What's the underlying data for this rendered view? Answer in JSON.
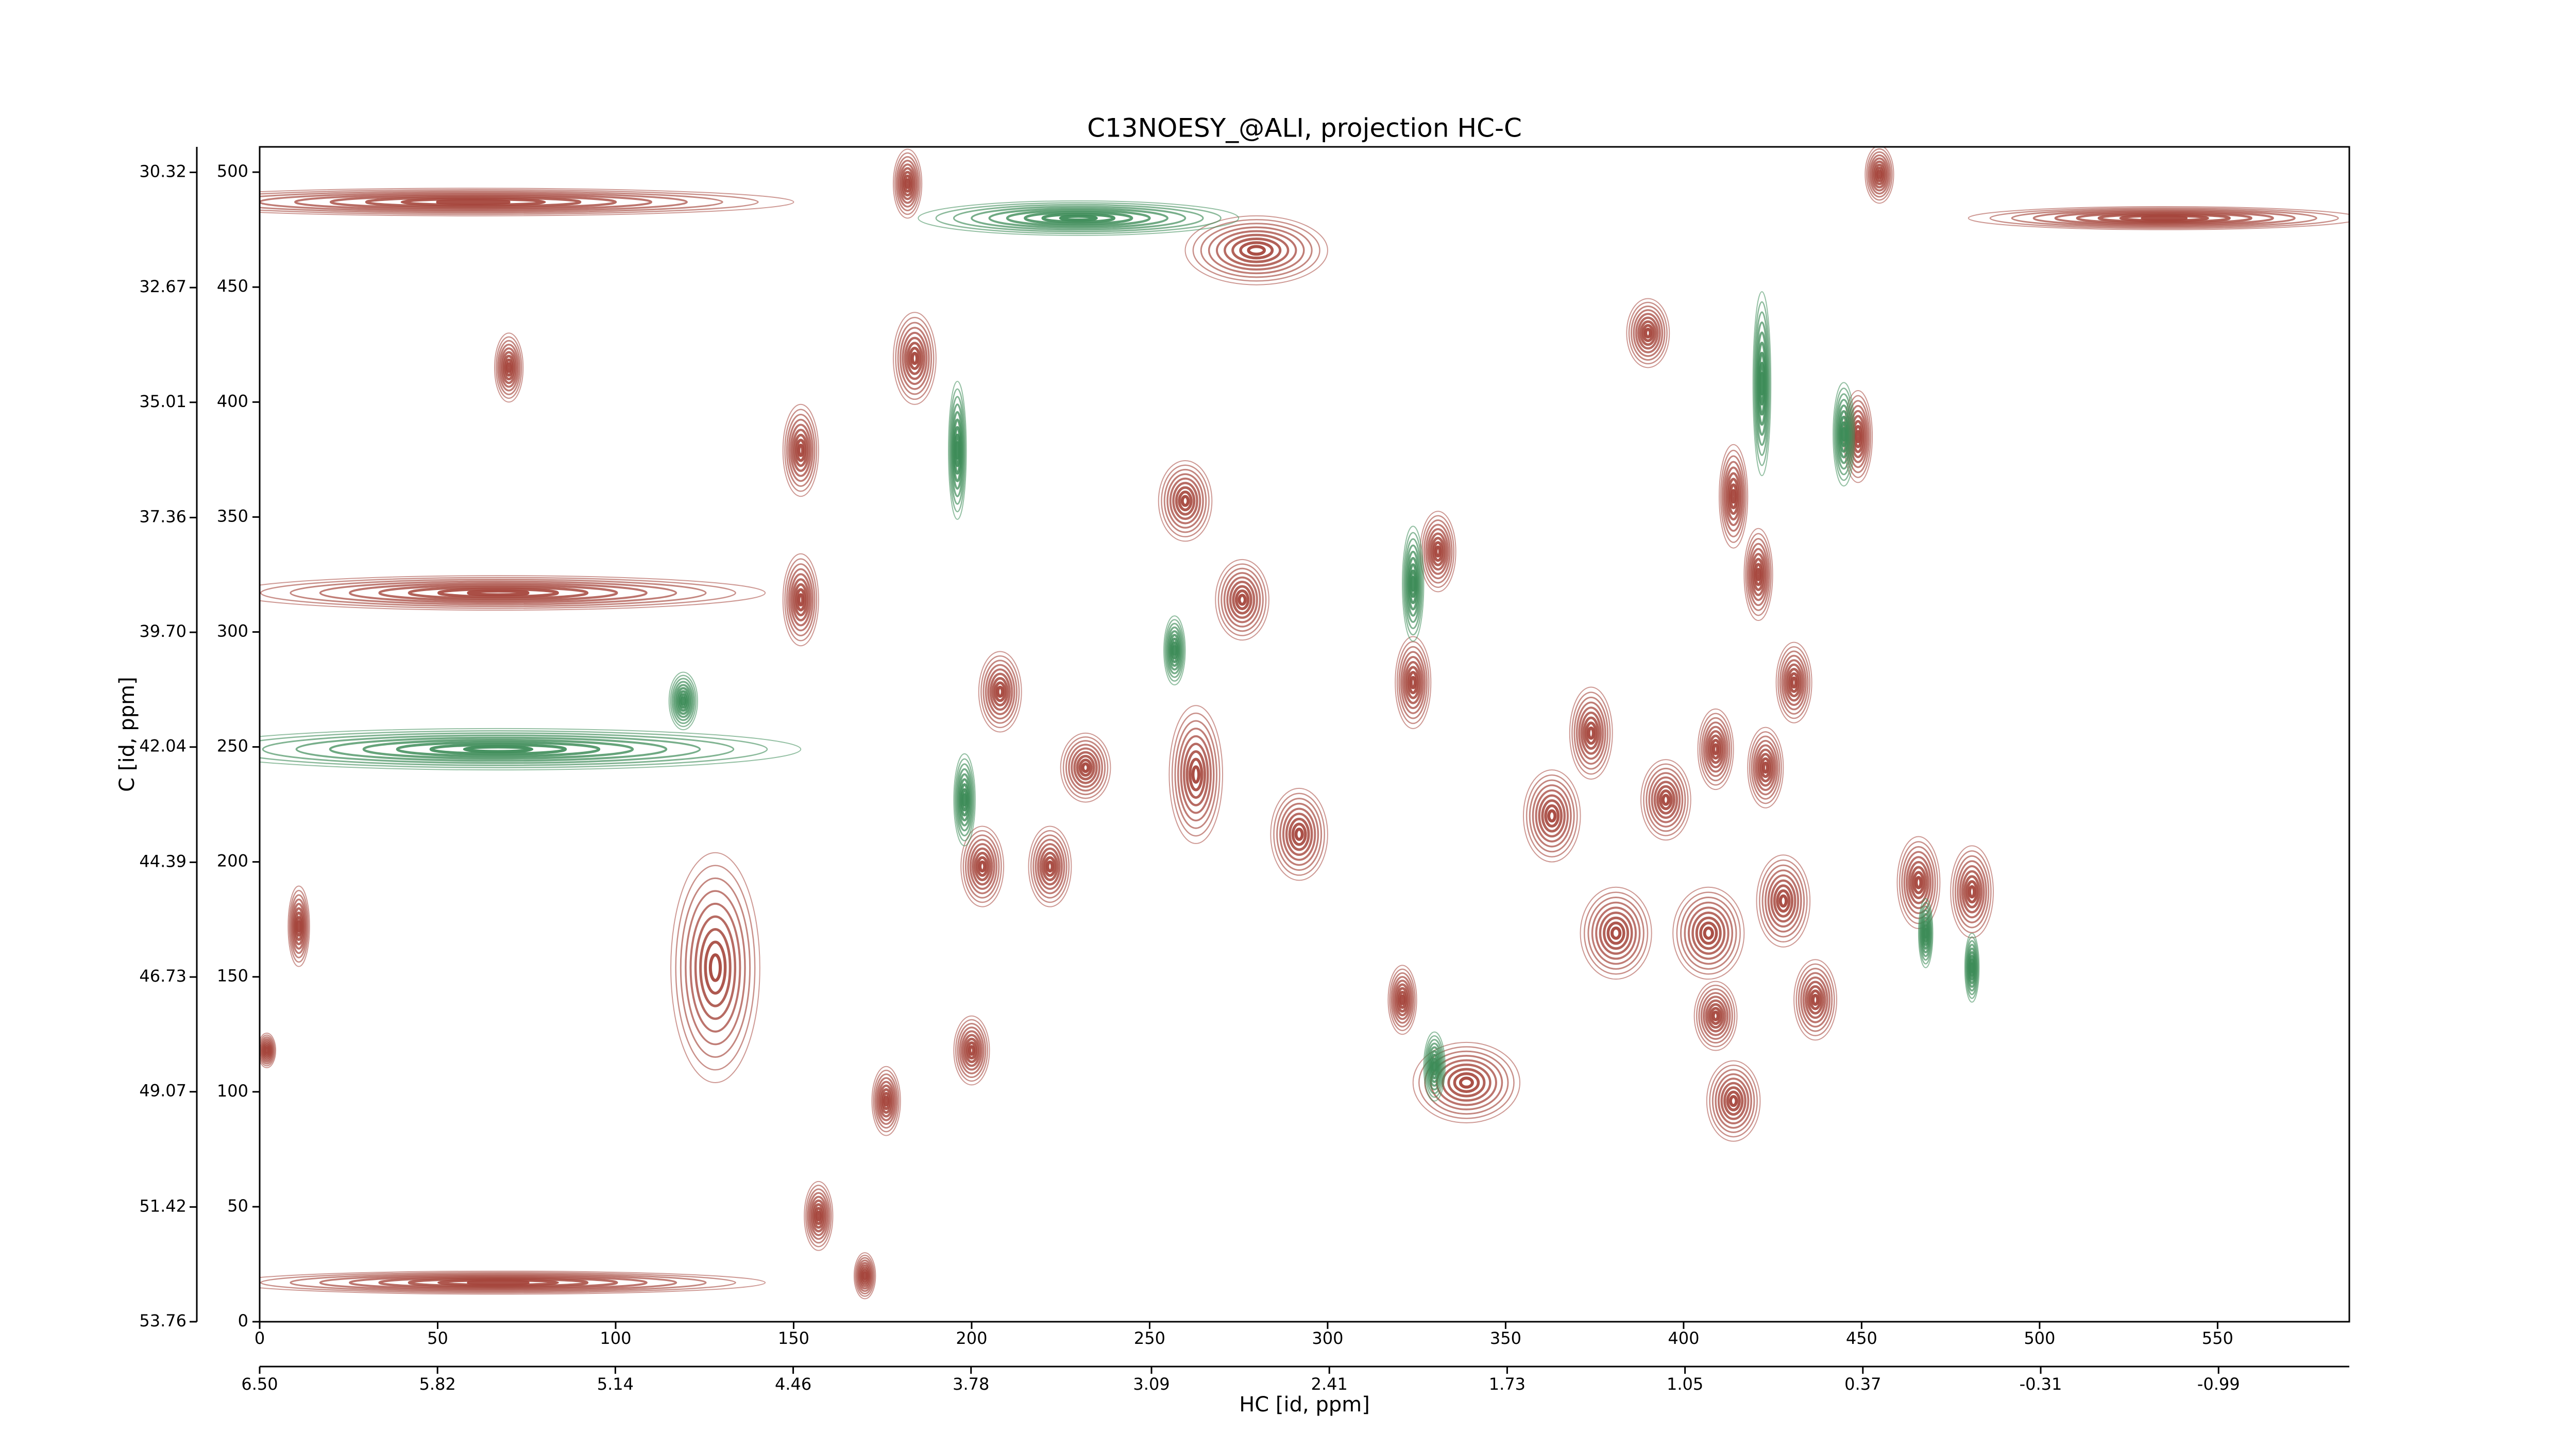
{
  "chart_data": {
    "type": "contour",
    "title": "C13NOESY_@ALI, projection HC-C",
    "xlabel": "HC [id, ppm]",
    "ylabel": "C [id, ppm]",
    "xlim": [
      0,
      587
    ],
    "xticks": [
      0,
      50,
      100,
      150,
      200,
      250,
      300,
      350,
      400,
      450,
      500,
      550
    ],
    "ylim": [
      0,
      511
    ],
    "yticks": [
      0,
      50,
      100,
      150,
      200,
      250,
      300,
      350,
      400,
      450,
      500
    ],
    "x2lim": [
      6.5,
      -1.49
    ],
    "x2ticks": [
      {
        "value": 6.5,
        "label": "6.50"
      },
      5.82,
      5.14,
      4.46,
      3.78,
      3.09,
      2.41,
      1.73,
      1.05,
      0.37,
      -0.31,
      -0.99
    ],
    "y2lim": [
      53.76,
      29.8
    ],
    "y2ticks": [
      53.76,
      51.42,
      49.07,
      46.73,
      44.39,
      42.04,
      {
        "value": 39.7,
        "label": "39.70"
      },
      37.36,
      35.01,
      32.67,
      30.32
    ],
    "series": [
      {
        "color": "#a5463c",
        "x": [
          449,
          414,
          421,
          431,
          409,
          423,
          466,
          481,
          324,
          331,
          321,
          339,
          263,
          260,
          276,
          208,
          200,
          176,
          170,
          157,
          152,
          152,
          184,
          182,
          280,
          390,
          374,
          381,
          407,
          428,
          414,
          409,
          222,
          203,
          232,
          292,
          363,
          70,
          11,
          2,
          455,
          60,
          535,
          67,
          67,
          128,
          395,
          437
        ],
        "y": [
          385,
          359,
          325,
          278,
          249,
          241,
          191,
          187,
          278,
          335,
          140,
          104,
          238,
          357,
          314,
          274,
          118,
          96,
          20,
          46,
          314,
          379,
          419,
          495,
          466,
          430,
          256,
          169,
          169,
          183,
          96,
          133,
          198,
          198,
          241,
          212,
          220,
          415,
          172,
          118,
          499,
          487,
          480,
          317,
          17,
          154,
          227,
          140
        ],
        "width": [
          8,
          8,
          8,
          10,
          10,
          10,
          12,
          12,
          10,
          10,
          8,
          30,
          15,
          15,
          15,
          12,
          10,
          8,
          6,
          8,
          10,
          10,
          12,
          8,
          40,
          12,
          12,
          20,
          20,
          15,
          15,
          12,
          12,
          12,
          14,
          16,
          16,
          8,
          6,
          5,
          8,
          180,
          110,
          150,
          150,
          25,
          14,
          12
        ],
        "height": [
          40,
          45,
          40,
          35,
          35,
          35,
          40,
          40,
          40,
          35,
          30,
          35,
          60,
          35,
          35,
          35,
          30,
          30,
          20,
          30,
          40,
          40,
          40,
          30,
          30,
          30,
          40,
          40,
          40,
          40,
          35,
          30,
          35,
          35,
          30,
          40,
          40,
          30,
          35,
          15,
          25,
          12,
          10,
          15,
          10,
          100,
          35,
          35
        ]
      },
      {
        "color": "#3d8c58",
        "x": [
          445,
          324,
          422,
          257,
          230,
          196,
          468,
          481,
          330,
          119,
          198,
          67
        ],
        "y": [
          386,
          321,
          408,
          292,
          480,
          379,
          169,
          154,
          111,
          270,
          227,
          249
        ],
        "width": [
          6,
          6,
          5,
          6,
          90,
          5,
          4,
          4,
          6,
          8,
          6,
          170
        ],
        "height": [
          45,
          50,
          80,
          30,
          15,
          60,
          30,
          30,
          30,
          25,
          40,
          18
        ]
      }
    ]
  }
}
